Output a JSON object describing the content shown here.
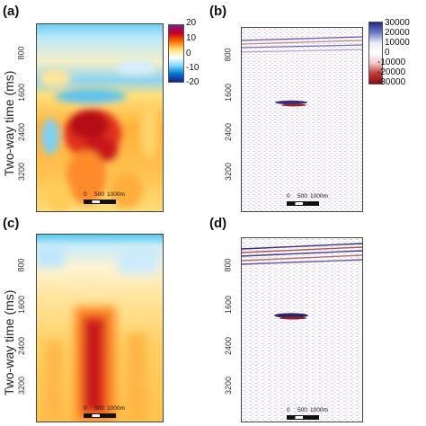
{
  "panels": [
    {
      "letter": "(a)"
    },
    {
      "letter": "(b)"
    },
    {
      "letter": "(c)"
    },
    {
      "letter": "(d)"
    }
  ],
  "y_axis_label": "Two-way time (ms)",
  "y_ticks": [
    "800",
    "1600",
    "2400",
    "3200"
  ],
  "colorbar_top_left": {
    "ticks": [
      "20",
      "10",
      "0",
      "-10",
      "-20"
    ],
    "colors": [
      "#7a1e8c",
      "#c4001a",
      "#ff6a00",
      "#ffe17a",
      "#ffffff",
      "#7fd7ff",
      "#0077cc",
      "#1b1f8a"
    ]
  },
  "colorbar_top_right": {
    "ticks": [
      "30000",
      "20000",
      "10000",
      "0",
      "-10000",
      "-20000",
      "-30000"
    ],
    "colors": [
      "#1c2a86",
      "#6b7bc7",
      "#e7ecf8",
      "#ffffff",
      "#f2c9c9",
      "#c23a3a",
      "#8a0f0f"
    ]
  },
  "scalebar": {
    "labels": [
      "0",
      "500",
      "1000m"
    ]
  }
}
